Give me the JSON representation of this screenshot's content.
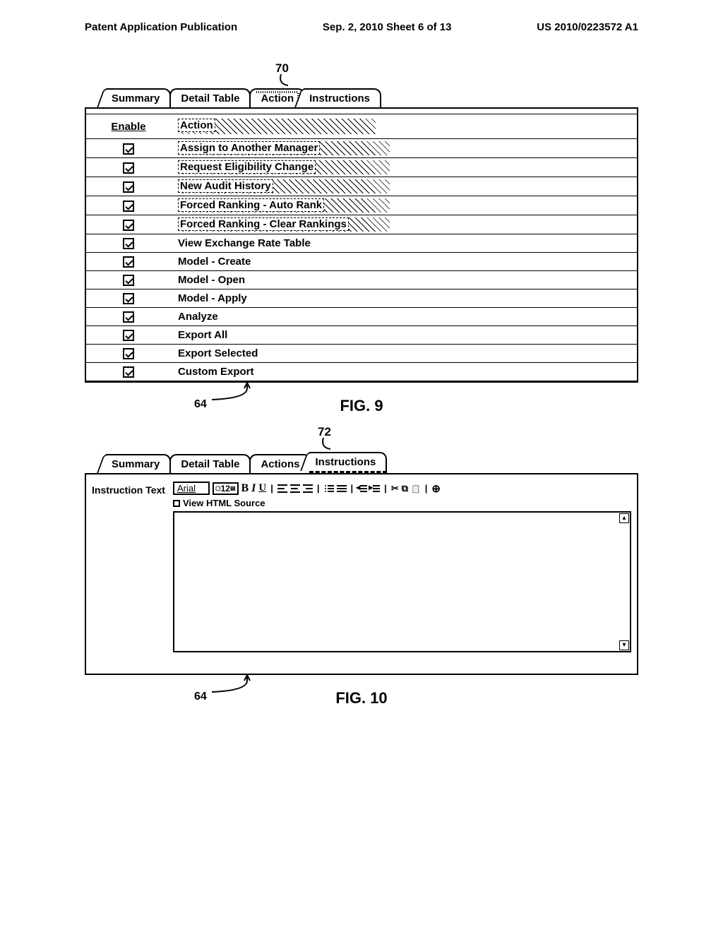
{
  "header": {
    "left": "Patent Application Publication",
    "center": "Sep. 2, 2010   Sheet 6 of 13",
    "right": "US 2010/0223572 A1"
  },
  "fig9": {
    "ref_top": "70",
    "ref_bottom": "64",
    "tabs": [
      "Summary",
      "Detail Table",
      "Action",
      "Instructions"
    ],
    "columns": [
      "Enable",
      "Action"
    ],
    "rows": [
      {
        "checked": true,
        "label": "Assign to Another Manager",
        "hatched": true
      },
      {
        "checked": true,
        "label": "Request Eligibility Change",
        "hatched": true
      },
      {
        "checked": true,
        "label": "New Audit History",
        "hatched": true
      },
      {
        "checked": true,
        "label": "Forced Ranking - Auto Rank",
        "hatched": true
      },
      {
        "checked": true,
        "label": "Forced Ranking - Clear Rankings",
        "hatched": true
      },
      {
        "checked": true,
        "label": "View Exchange Rate Table",
        "hatched": false
      },
      {
        "checked": true,
        "label": "Model - Create",
        "hatched": false
      },
      {
        "checked": true,
        "label": "Model - Open",
        "hatched": false
      },
      {
        "checked": true,
        "label": "Model - Apply",
        "hatched": false
      },
      {
        "checked": true,
        "label": "Analyze",
        "hatched": false
      },
      {
        "checked": true,
        "label": "Export All",
        "hatched": false
      },
      {
        "checked": true,
        "label": "Export Selected",
        "hatched": false
      },
      {
        "checked": true,
        "label": "Custom Export",
        "hatched": false
      }
    ],
    "caption": "FIG. 9"
  },
  "fig10": {
    "ref_top": "72",
    "ref_bottom": "64",
    "tabs": [
      "Summary",
      "Detail Table",
      "Actions",
      "Instructions"
    ],
    "side_label": "Instruction Text",
    "font_name": "Arial",
    "font_size": "12",
    "view_html_label": "View HTML Source",
    "caption": "FIG. 10"
  }
}
